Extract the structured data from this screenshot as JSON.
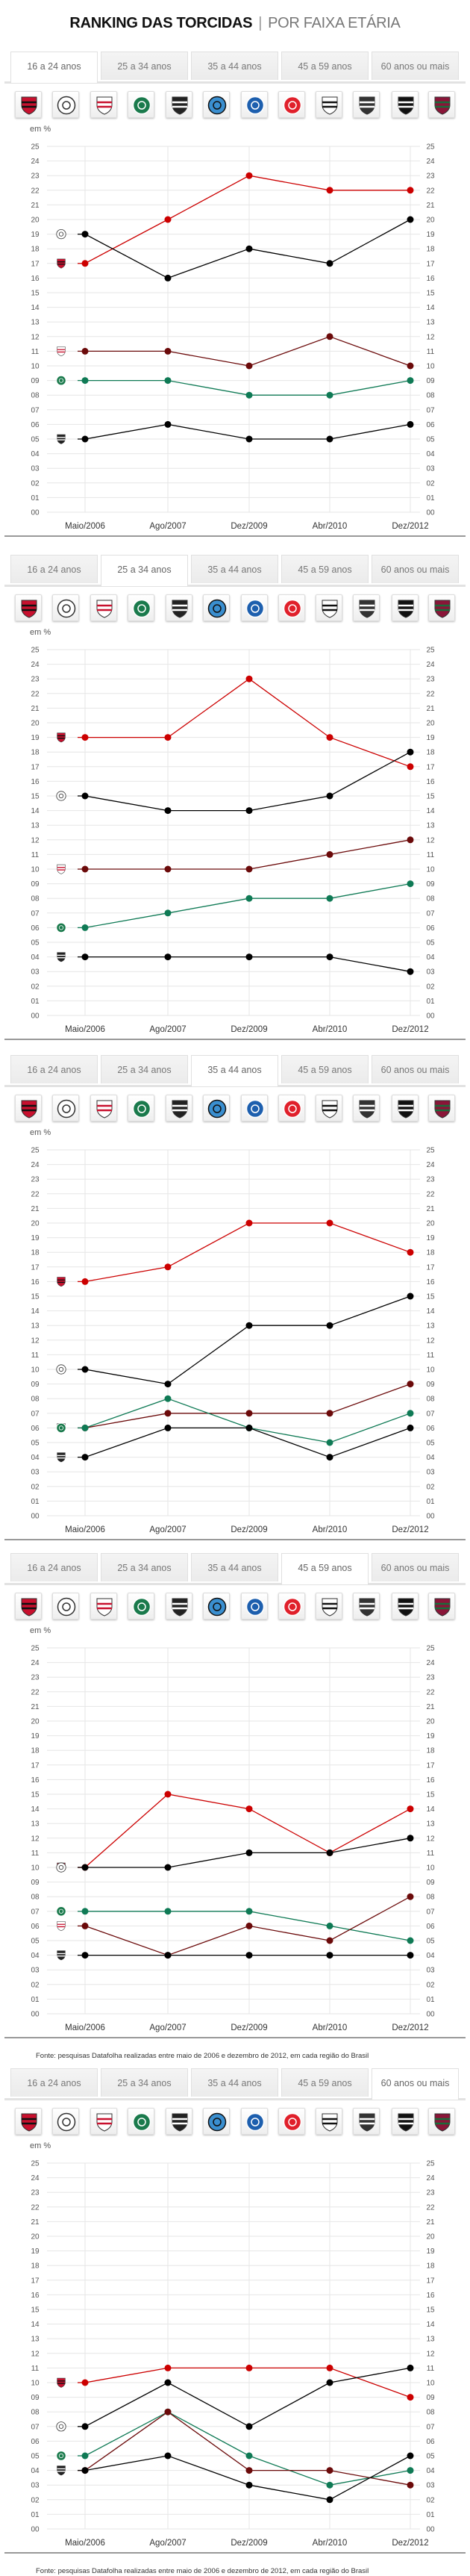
{
  "header": {
    "title_bold": "RANKING DAS TORCIDAS",
    "separator": "|",
    "title_light": "POR FAIXA ETÁRIA"
  },
  "tabs": [
    "16 a 24 anos",
    "25 a 34 anos",
    "35 a 44 anos",
    "45 a 59 anos",
    "60 anos ou mais"
  ],
  "crests": [
    {
      "icon": "flamengo-crest-icon",
      "shape": "shield",
      "colors": [
        "#c8102e",
        "#111111"
      ]
    },
    {
      "icon": "corinthians-crest-icon",
      "shape": "circle",
      "colors": [
        "#ffffff",
        "#333333"
      ]
    },
    {
      "icon": "sao-paulo-crest-icon",
      "shape": "shield",
      "colors": [
        "#ffffff",
        "#c8102e"
      ]
    },
    {
      "icon": "palmeiras-crest-icon",
      "shape": "circle",
      "colors": [
        "#1a7a4c",
        "#ffffff"
      ]
    },
    {
      "icon": "vasco-crest-icon",
      "shape": "shield",
      "colors": [
        "#222222",
        "#ffffff"
      ]
    },
    {
      "icon": "gremio-crest-icon",
      "shape": "circle",
      "colors": [
        "#3a8fd0",
        "#111111"
      ]
    },
    {
      "icon": "cruzeiro-crest-icon",
      "shape": "circle",
      "colors": [
        "#1d5fae",
        "#ffffff"
      ]
    },
    {
      "icon": "internacional-crest-icon",
      "shape": "circle",
      "colors": [
        "#e0202b",
        "#ffffff"
      ]
    },
    {
      "icon": "santos-crest-icon",
      "shape": "shield",
      "colors": [
        "#ffffff",
        "#111111"
      ]
    },
    {
      "icon": "atletico-mg-crest-icon",
      "shape": "shield",
      "colors": [
        "#333333",
        "#ffffff"
      ]
    },
    {
      "icon": "botafogo-crest-icon",
      "shape": "shield",
      "colors": [
        "#111111",
        "#ffffff"
      ]
    },
    {
      "icon": "fluminense-crest-icon",
      "shape": "shield",
      "colors": [
        "#8a1538",
        "#1a6b3a"
      ]
    }
  ],
  "unit_label": "em %",
  "footnote": "Fonte: pesquisas Datafolha realizadas entre maio de 2006 e dezembro de 2012, em cada região do Brasil",
  "chart_data": [
    {
      "type": "line",
      "active_tab": 0,
      "ylabel": "em %",
      "ylim": [
        0,
        25
      ],
      "grid": true,
      "yticks": [
        "25",
        "24",
        "23",
        "22",
        "21",
        "20",
        "19",
        "18",
        "17",
        "16",
        "15",
        "14",
        "13",
        "12",
        "11",
        "10",
        "09",
        "08",
        "07",
        "06",
        "05",
        "04",
        "03",
        "02",
        "01",
        "00"
      ],
      "categories": [
        "Maio/2006",
        "Ago/2007",
        "Dez/2009",
        "Abr/2010",
        "Dez/2012"
      ],
      "series": [
        {
          "icon": "flamengo-crest-icon",
          "color": "#cc0000",
          "values": [
            17,
            20,
            23,
            22,
            22
          ]
        },
        {
          "icon": "corinthians-crest-icon",
          "color": "#000000",
          "values": [
            19,
            16,
            18,
            17,
            20
          ]
        },
        {
          "icon": "sao-paulo-crest-icon",
          "color": "#6b0a0a",
          "values": [
            11,
            11,
            10,
            12,
            10
          ]
        },
        {
          "icon": "palmeiras-crest-icon",
          "color": "#0f7a55",
          "values": [
            9,
            9,
            8,
            8,
            9
          ]
        },
        {
          "icon": "vasco-crest-icon",
          "color": "#000000",
          "values": [
            5,
            6,
            5,
            5,
            6
          ]
        }
      ]
    },
    {
      "type": "line",
      "active_tab": 1,
      "ylabel": "em %",
      "ylim": [
        0,
        25
      ],
      "grid": true,
      "yticks": [
        "25",
        "24",
        "23",
        "22",
        "21",
        "20",
        "19",
        "18",
        "17",
        "16",
        "15",
        "14",
        "13",
        "12",
        "11",
        "10",
        "09",
        "08",
        "07",
        "06",
        "05",
        "04",
        "03",
        "02",
        "01",
        "00"
      ],
      "categories": [
        "Maio/2006",
        "Ago/2007",
        "Dez/2009",
        "Abr/2010",
        "Dez/2012"
      ],
      "series": [
        {
          "icon": "flamengo-crest-icon",
          "color": "#cc0000",
          "values": [
            19,
            19,
            23,
            19,
            17
          ]
        },
        {
          "icon": "corinthians-crest-icon",
          "color": "#000000",
          "values": [
            15,
            14,
            14,
            15,
            18
          ]
        },
        {
          "icon": "sao-paulo-crest-icon",
          "color": "#6b0a0a",
          "values": [
            10,
            10,
            10,
            11,
            12
          ]
        },
        {
          "icon": "palmeiras-crest-icon",
          "color": "#0f7a55",
          "values": [
            6,
            7,
            8,
            8,
            9
          ]
        },
        {
          "icon": "vasco-crest-icon",
          "color": "#000000",
          "values": [
            4,
            4,
            4,
            4,
            3
          ]
        }
      ]
    },
    {
      "type": "line",
      "active_tab": 2,
      "ylabel": "em %",
      "ylim": [
        0,
        25
      ],
      "grid": true,
      "yticks": [
        "25",
        "24",
        "23",
        "22",
        "21",
        "20",
        "19",
        "18",
        "17",
        "16",
        "15",
        "14",
        "13",
        "12",
        "11",
        "10",
        "09",
        "08",
        "07",
        "06",
        "05",
        "04",
        "03",
        "02",
        "01",
        "00"
      ],
      "categories": [
        "Maio/2006",
        "Ago/2007",
        "Dez/2009",
        "Abr/2010",
        "Dez/2012"
      ],
      "series": [
        {
          "icon": "flamengo-crest-icon",
          "color": "#cc0000",
          "values": [
            16,
            17,
            20,
            20,
            18
          ]
        },
        {
          "icon": "corinthians-crest-icon",
          "color": "#000000",
          "values": [
            10,
            9,
            13,
            13,
            15
          ]
        },
        {
          "icon": "sao-paulo-crest-icon",
          "color": "#6b0a0a",
          "values": [
            6,
            7,
            7,
            7,
            9
          ]
        },
        {
          "icon": "palmeiras-crest-icon",
          "color": "#0f7a55",
          "values": [
            6,
            8,
            6,
            5,
            7
          ]
        },
        {
          "icon": "vasco-crest-icon",
          "color": "#000000",
          "values": [
            4,
            6,
            6,
            4,
            6
          ]
        }
      ]
    },
    {
      "type": "line",
      "active_tab": 3,
      "ylabel": "em %",
      "ylim": [
        0,
        25
      ],
      "grid": true,
      "yticks": [
        "25",
        "24",
        "23",
        "22",
        "21",
        "20",
        "19",
        "18",
        "17",
        "16",
        "15",
        "14",
        "13",
        "12",
        "11",
        "10",
        "09",
        "08",
        "07",
        "06",
        "05",
        "04",
        "03",
        "02",
        "01",
        "00"
      ],
      "categories": [
        "Maio/2006",
        "Ago/2007",
        "Dez/2009",
        "Abr/2010",
        "Dez/2012"
      ],
      "series": [
        {
          "icon": "flamengo-crest-icon",
          "color": "#cc0000",
          "values": [
            10,
            15,
            14,
            11,
            14
          ]
        },
        {
          "icon": "corinthians-crest-icon",
          "color": "#000000",
          "values": [
            10,
            10,
            11,
            11,
            12
          ]
        },
        {
          "icon": "palmeiras-crest-icon",
          "color": "#0f7a55",
          "values": [
            7,
            7,
            7,
            6,
            5
          ]
        },
        {
          "icon": "sao-paulo-crest-icon",
          "color": "#6b0a0a",
          "values": [
            6,
            4,
            6,
            5,
            8
          ]
        },
        {
          "icon": "vasco-crest-icon",
          "color": "#000000",
          "values": [
            4,
            4,
            4,
            4,
            4
          ]
        }
      ]
    },
    {
      "type": "line",
      "active_tab": 4,
      "ylabel": "em %",
      "ylim": [
        0,
        25
      ],
      "grid": true,
      "yticks": [
        "25",
        "24",
        "23",
        "22",
        "21",
        "20",
        "19",
        "18",
        "17",
        "16",
        "15",
        "14",
        "13",
        "12",
        "11",
        "10",
        "09",
        "08",
        "07",
        "06",
        "05",
        "04",
        "03",
        "02",
        "01",
        "00"
      ],
      "categories": [
        "Maio/2006",
        "Ago/2007",
        "Dez/2009",
        "Abr/2010",
        "Dez/2012"
      ],
      "series": [
        {
          "icon": "flamengo-crest-icon",
          "color": "#cc0000",
          "values": [
            10,
            11,
            11,
            11,
            9
          ]
        },
        {
          "icon": "corinthians-crest-icon",
          "color": "#000000",
          "values": [
            7,
            10,
            7,
            10,
            11
          ]
        },
        {
          "icon": "palmeiras-crest-icon",
          "color": "#0f7a55",
          "values": [
            5,
            8,
            5,
            3,
            4
          ]
        },
        {
          "icon": "sao-paulo-crest-icon",
          "color": "#6b0a0a",
          "values": [
            4,
            8,
            4,
            4,
            3
          ]
        },
        {
          "icon": "vasco-crest-icon",
          "color": "#000000",
          "values": [
            4,
            5,
            3,
            2,
            5
          ]
        }
      ]
    }
  ]
}
